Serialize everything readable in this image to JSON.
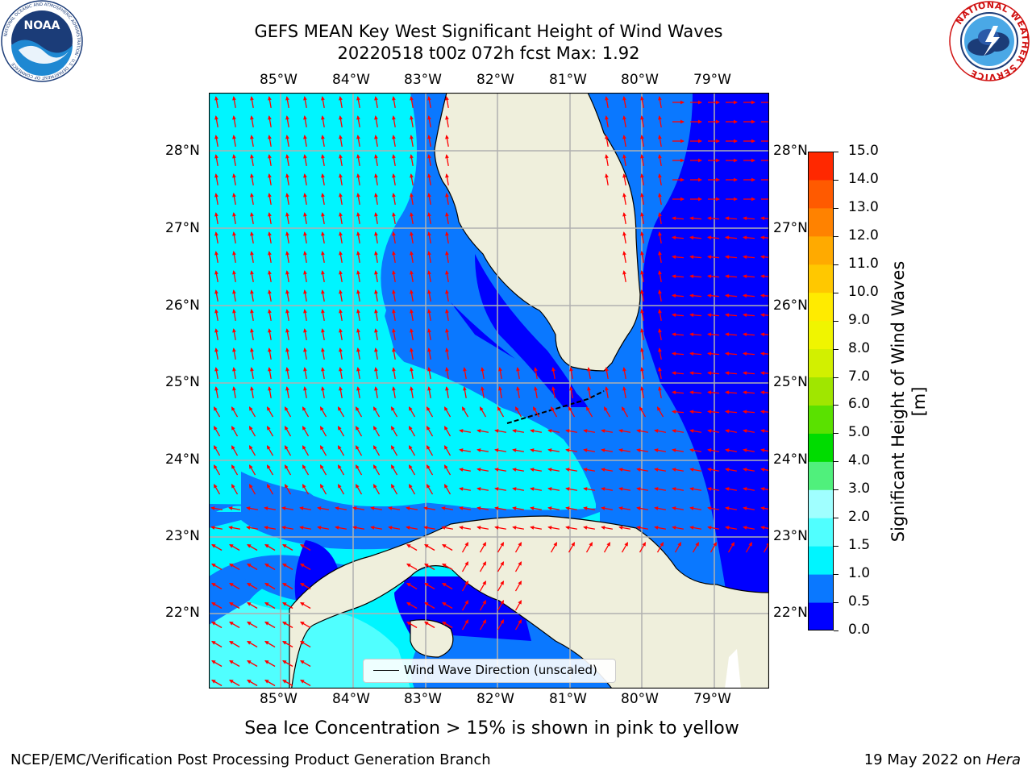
{
  "title_line1": "GEFS MEAN Key West Significant Height of Wind Waves",
  "title_line2": "20220518 t00z 072h fcst   Max: 1.92",
  "logos": {
    "left": {
      "text": "NOAA",
      "ring_text": "NATIONAL OCEANIC AND ATMOSPHERIC ADMINISTRATION · U.S. DEPARTMENT OF COMMERCE",
      "icon": "noaa-logo"
    },
    "right": {
      "ring_text": "NATIONAL WEATHER SERVICE",
      "icon": "nws-logo"
    }
  },
  "map": {
    "lon_labels": [
      "85°W",
      "84°W",
      "83°W",
      "82°W",
      "81°W",
      "80°W",
      "79°W"
    ],
    "lat_labels": [
      "28°N",
      "27°N",
      "26°N",
      "25°N",
      "24°N",
      "23°N",
      "22°N"
    ],
    "lon_range": [
      -86.0,
      -78.25
    ],
    "lat_range": [
      21.05,
      28.75
    ],
    "legend_label": "Wind Wave Direction (unscaled)",
    "arrow_color": "#ff0000",
    "land_color": "#efefdc",
    "grid_color": "#b0b0b0"
  },
  "colorbar": {
    "label": "Significant Height of Wind Waves [m]",
    "ticks": [
      "0.0",
      "0.5",
      "1.0",
      "1.5",
      "2.0",
      "3.0",
      "4.0",
      "5.0",
      "6.0",
      "7.0",
      "8.0",
      "9.0",
      "10.0",
      "11.0",
      "12.0",
      "13.0",
      "14.0",
      "15.0"
    ],
    "colors": [
      "#0000ff",
      "#0a78ff",
      "#00f5ff",
      "#50ffff",
      "#a0ffff",
      "#50f07c",
      "#00dc00",
      "#5ae100",
      "#a0e600",
      "#d2f000",
      "#f0f500",
      "#ffeb00",
      "#ffc800",
      "#ffaa00",
      "#ff8200",
      "#ff5a00",
      "#ff2800"
    ]
  },
  "sea_ice_note": "Sea Ice Concentration > 15% is shown in pink to yellow",
  "footer_left": "NCEP/EMC/Verification Post Processing Product Generation Branch",
  "footer_right_prefix": "19 May 2022 on ",
  "footer_right_host": "Hera"
}
